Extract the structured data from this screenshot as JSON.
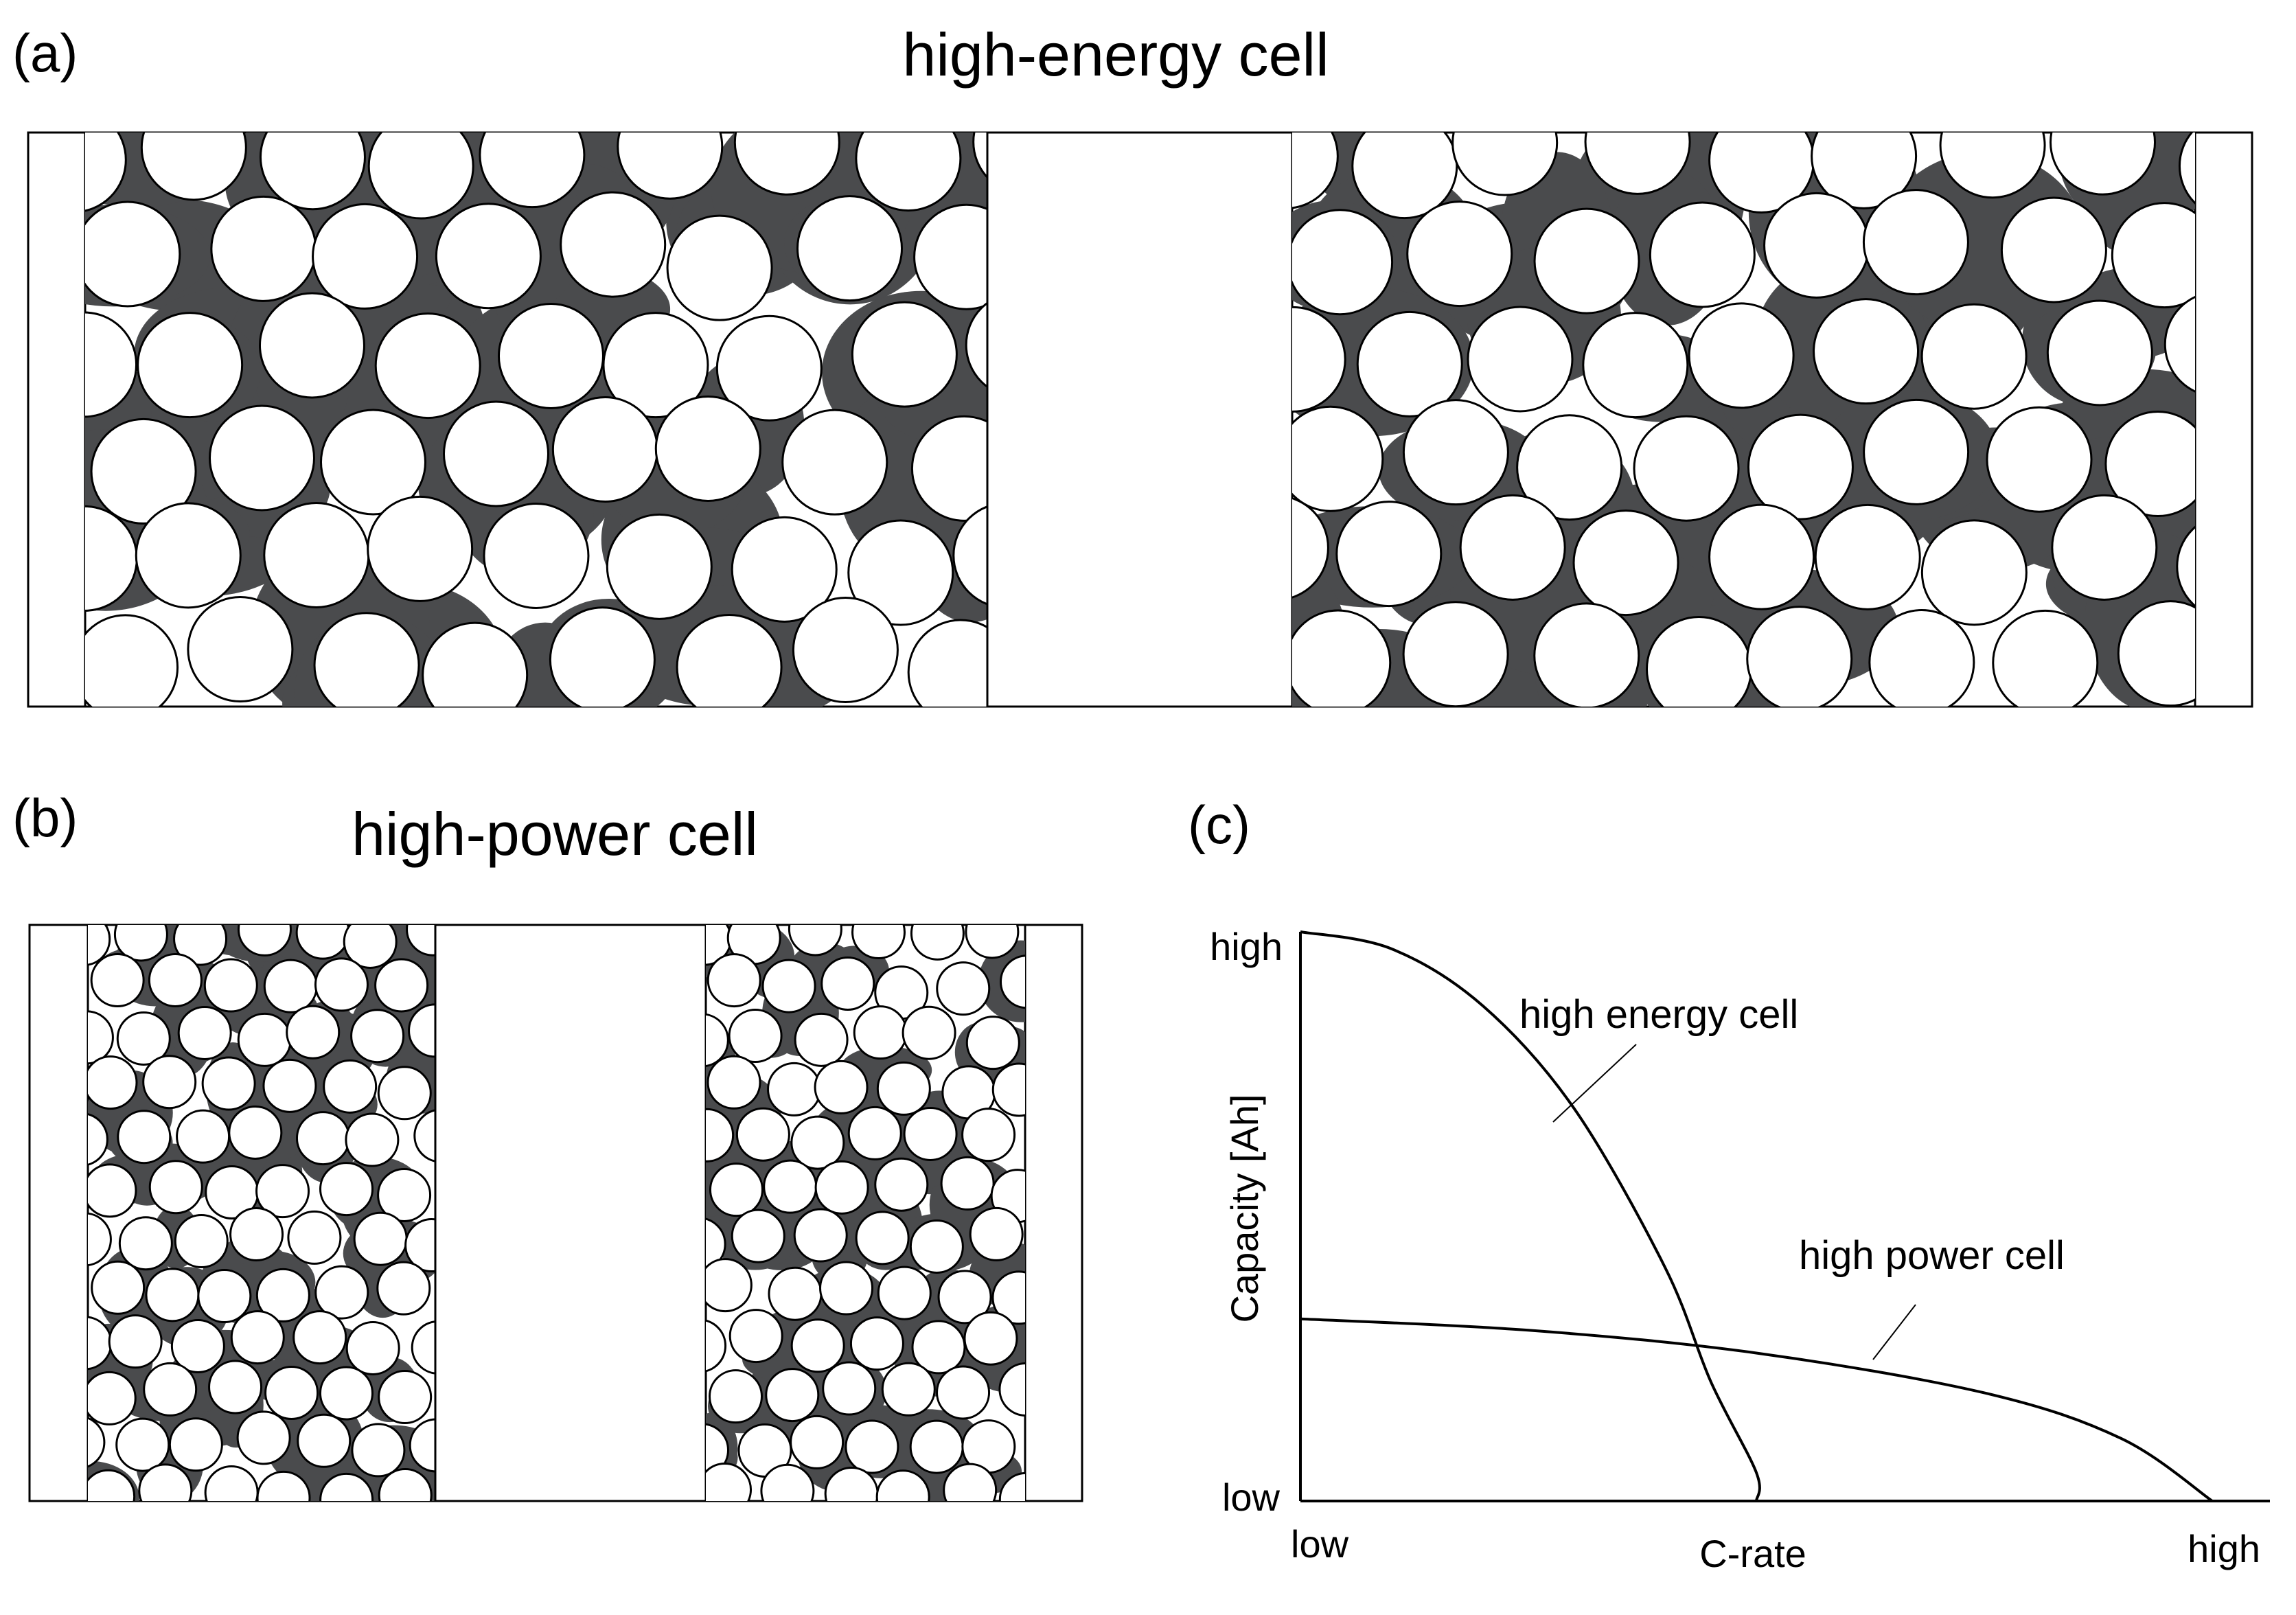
{
  "panel_a": {
    "tag": "(a)",
    "title": "high-energy cell"
  },
  "panel_b": {
    "tag": "(b)",
    "title": "high-power cell"
  },
  "panel_c": {
    "tag": "(c)",
    "chart_data": {
      "type": "line",
      "xlabel": "C-rate",
      "ylabel": "Capacity [Ah]",
      "x_ticks": [
        "low",
        "high"
      ],
      "y_ticks": [
        "low",
        "high"
      ],
      "series": [
        {
          "name": "high energy cell",
          "x": [
            0,
            0.1,
            0.2,
            0.3,
            0.4,
            0.45,
            0.5,
            0.5
          ],
          "y": [
            1.0,
            0.97,
            0.87,
            0.69,
            0.41,
            0.21,
            0.05,
            0.0
          ]
        },
        {
          "name": "high power cell",
          "x": [
            0,
            0.25,
            0.5,
            0.75,
            0.9,
            1.0
          ],
          "y": [
            0.32,
            0.3,
            0.26,
            0.19,
            0.11,
            0.0
          ]
        }
      ]
    }
  },
  "colors": {
    "binder": "#4a4b4d",
    "particle": "#ffffff",
    "outline": "#000000"
  }
}
